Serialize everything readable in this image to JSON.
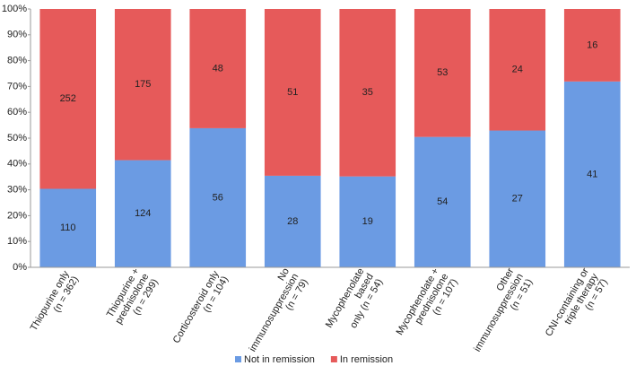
{
  "chart_data": {
    "type": "bar",
    "stacking": "percent",
    "categories": [
      [
        "Thiopurine only",
        "(n = 362)"
      ],
      [
        "Thiopurine +",
        "prednisolone",
        "(n = 299)"
      ],
      [
        "Corticosteroid only",
        "(n = 104)"
      ],
      [
        "No",
        "immunosuppression",
        "(n = 79)"
      ],
      [
        "Mycophenolate",
        "based",
        "only (n = 54)"
      ],
      [
        "Mycophenolate +",
        "prednisolone",
        "(n = 107)"
      ],
      [
        "Other",
        "immunosuppression",
        "(n = 51)"
      ],
      [
        "CNI-containing or",
        "triple therapy",
        "(n = 57)"
      ]
    ],
    "series": [
      {
        "name": "Not in remission",
        "color": "#6b9be3",
        "values": [
          110,
          124,
          56,
          28,
          19,
          54,
          27,
          41
        ]
      },
      {
        "name": "In remission",
        "color": "#e65a5a",
        "values": [
          252,
          175,
          48,
          51,
          35,
          53,
          24,
          16
        ]
      }
    ],
    "ylim": [
      0,
      100
    ],
    "yticks": [
      {
        "value": 0,
        "label": "0%"
      },
      {
        "value": 10,
        "label": "10%"
      },
      {
        "value": 20,
        "label": "20%"
      },
      {
        "value": 30,
        "label": "30%"
      },
      {
        "value": 40,
        "label": "40%"
      },
      {
        "value": 50,
        "label": "50%"
      },
      {
        "value": 60,
        "label": "60%"
      },
      {
        "value": 70,
        "label": "70%"
      },
      {
        "value": 80,
        "label": "80%"
      },
      {
        "value": 90,
        "label": "90%"
      },
      {
        "value": 100,
        "label": "100%"
      }
    ],
    "legend": "bottom"
  }
}
